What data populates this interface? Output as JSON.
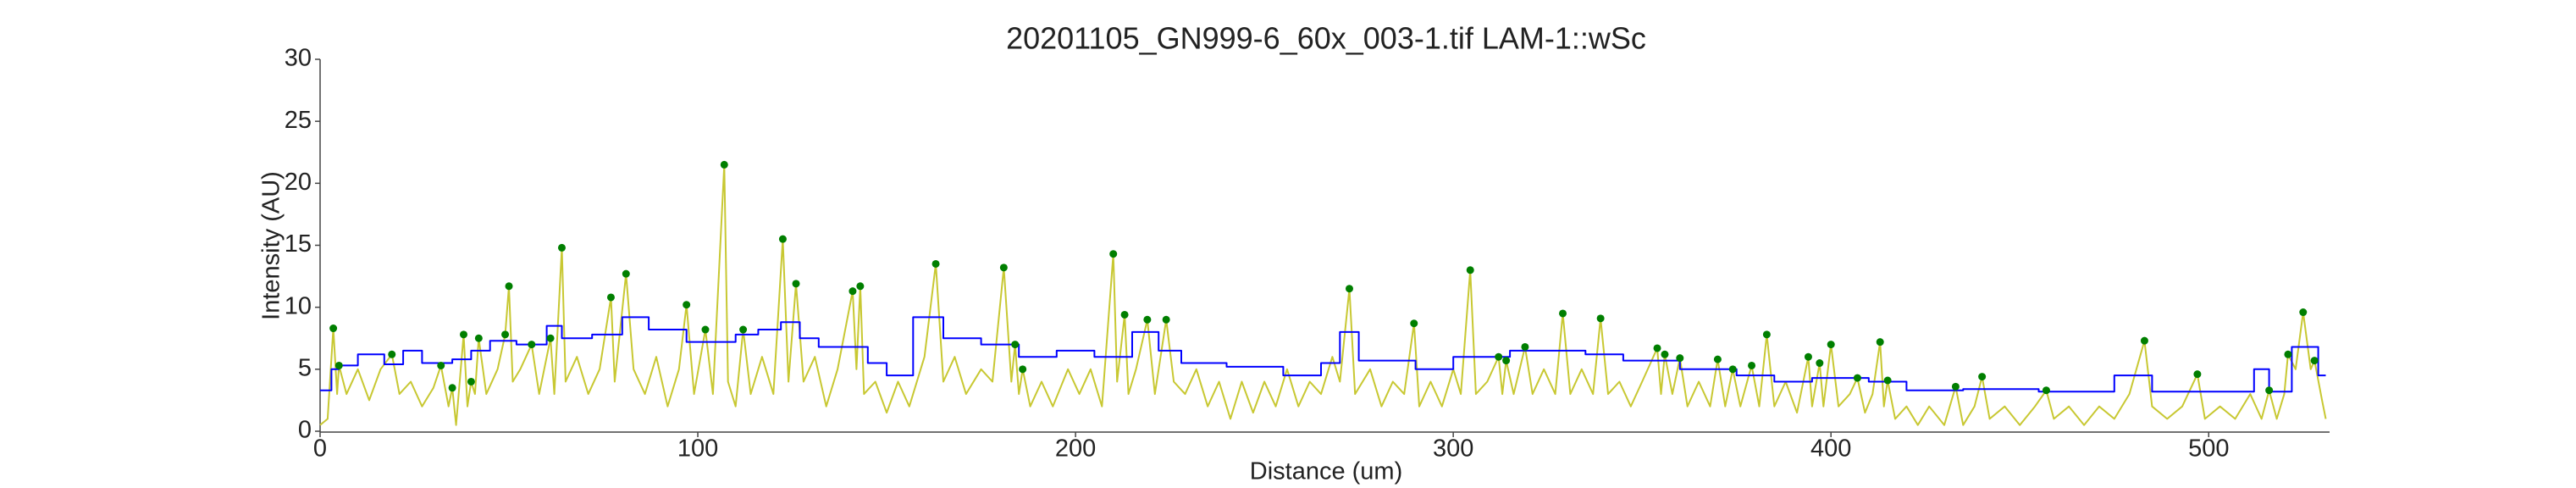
{
  "chart_data": {
    "type": "line",
    "title": "20201105_GN999-6_60x_003-1.tif LAM-1::wSc",
    "x_label": "Distance (um)",
    "y_label": "Intensity (AU)",
    "xlim": [
      0,
      532
    ],
    "ylim": [
      0,
      30
    ],
    "xticks": [
      0,
      100,
      200,
      300,
      400,
      500
    ],
    "yticks": [
      0,
      5,
      10,
      15,
      20,
      25,
      30
    ],
    "series": [
      {
        "kind": "line",
        "color": "#c8c832",
        "x": [
          0,
          2,
          3.5,
          4.5,
          5,
          7,
          10,
          13,
          16,
          19,
          21,
          24,
          27,
          30,
          32,
          34,
          35,
          36,
          38,
          39,
          40,
          41,
          42,
          44,
          47,
          49,
          50,
          51,
          53,
          56,
          58,
          61,
          62,
          64,
          65,
          68,
          71,
          74,
          77,
          78,
          81,
          83,
          86,
          89,
          92,
          95,
          97,
          99,
          102,
          104,
          107,
          108,
          110,
          112,
          114,
          117,
          120,
          122.5,
          124,
          126,
          128,
          131,
          134,
          137,
          141,
          142,
          143,
          144,
          147,
          150,
          153,
          156,
          160,
          163,
          165,
          168,
          171,
          175,
          178,
          181,
          183,
          184,
          185,
          186,
          188,
          191,
          194,
          198,
          201,
          204,
          207,
          210,
          211,
          213,
          214,
          216,
          219,
          221,
          224,
          226,
          229,
          232,
          235,
          238,
          241,
          244,
          247,
          250,
          253,
          256,
          259,
          262,
          265,
          268,
          270,
          272.5,
          274,
          278,
          281,
          284,
          287,
          289.6,
          291,
          294,
          297,
          300,
          302,
          304.5,
          306,
          309,
          312,
          313,
          314,
          316,
          319,
          321,
          324,
          327,
          329,
          331,
          334,
          337,
          339,
          341,
          344,
          347,
          350,
          354,
          355,
          356,
          358,
          360,
          362,
          365,
          368,
          370,
          372,
          374,
          376,
          379,
          381,
          383,
          385,
          388,
          391,
          394,
          395,
          397,
          398,
          400,
          402,
          405,
          407,
          409,
          411,
          413,
          414,
          415,
          417,
          420,
          423,
          426,
          430,
          433,
          435,
          438,
          440,
          442,
          446,
          450,
          454,
          457,
          459,
          463,
          467,
          471,
          475,
          479,
          483,
          485,
          489,
          493,
          497,
          499,
          503,
          507,
          511,
          514,
          516,
          518,
          520,
          521,
          523,
          525,
          527,
          528,
          530,
          531
        ],
        "values": [
          0.5,
          1,
          8.3,
          3,
          5.3,
          3,
          5,
          2.5,
          5,
          6.2,
          3,
          4,
          2,
          3.5,
          5.3,
          2,
          3.5,
          0.5,
          7.8,
          2,
          4,
          3,
          7.5,
          3,
          5,
          7.8,
          11.7,
          4,
          5,
          7,
          3,
          7.5,
          3,
          14.8,
          4,
          6,
          3,
          5,
          10.8,
          4,
          12.7,
          5,
          3,
          6,
          2,
          5,
          10.2,
          3,
          8.2,
          3,
          21.5,
          4,
          2,
          8.2,
          3,
          6,
          3,
          15.5,
          4,
          11.9,
          4,
          6,
          2,
          5,
          11.3,
          5,
          11.7,
          3,
          4,
          1.5,
          4,
          2,
          6,
          13.5,
          4,
          6,
          3,
          5,
          4,
          13.2,
          4,
          7,
          3,
          5,
          2,
          4,
          2,
          5,
          3,
          5,
          2,
          14.3,
          4,
          9.4,
          3,
          5,
          9,
          3,
          9,
          4,
          3,
          5,
          2,
          4,
          1,
          4,
          1.5,
          4,
          2,
          5,
          2,
          4,
          3,
          6,
          4,
          11.5,
          3,
          5,
          2,
          4,
          3,
          8.7,
          2,
          4,
          2,
          5,
          3,
          13,
          3,
          4,
          6,
          3,
          5.7,
          3,
          6.8,
          3,
          5,
          3,
          9.5,
          3,
          5,
          3,
          9.1,
          3,
          4,
          2,
          4,
          6.7,
          3,
          6.2,
          3,
          5.9,
          2,
          4,
          2,
          5.8,
          2,
          5,
          2,
          5.3,
          2,
          7.8,
          2,
          4,
          1.5,
          6,
          2,
          5.5,
          2,
          7,
          2,
          3,
          4.3,
          1.5,
          3,
          7.2,
          2,
          4.1,
          1,
          2,
          0.5,
          2,
          0.5,
          3.6,
          0.5,
          2,
          4.4,
          1,
          2,
          0.5,
          2,
          3.3,
          1,
          2,
          0.5,
          2,
          1,
          3,
          7.3,
          2,
          1,
          2,
          4.6,
          1,
          2,
          1,
          3,
          1,
          3.3,
          1,
          3,
          6.2,
          5,
          9.6,
          5,
          5.7,
          2.5,
          1
        ]
      },
      {
        "kind": "line",
        "color": "#0000ff",
        "x": [
          0,
          3,
          3,
          5,
          5,
          10,
          10,
          17,
          17,
          22,
          22,
          27,
          27,
          35,
          35,
          40,
          40,
          45,
          45,
          52,
          52,
          60,
          60,
          64,
          64,
          72,
          72,
          80,
          80,
          87,
          87,
          97,
          97,
          110,
          110,
          116,
          116,
          122,
          122,
          127,
          127,
          132,
          132,
          145,
          145,
          150,
          150,
          157,
          157,
          165,
          165,
          175,
          175,
          185,
          185,
          195,
          195,
          205,
          205,
          215,
          215,
          222,
          222,
          228,
          228,
          240,
          240,
          255,
          255,
          265,
          265,
          270,
          270,
          275,
          275,
          290,
          290,
          300,
          300,
          315,
          315,
          335,
          335,
          345,
          345,
          360,
          360,
          375,
          375,
          385,
          385,
          395,
          395,
          410,
          410,
          420,
          420,
          435,
          435,
          455,
          455,
          475,
          475,
          485,
          485,
          512,
          512,
          516,
          516,
          522,
          522,
          529,
          529,
          531
        ],
        "values": [
          3.3,
          3.3,
          5,
          5,
          5.3,
          5.3,
          6.2,
          6.2,
          5.4,
          5.4,
          6.5,
          6.5,
          5.5,
          5.5,
          5.8,
          5.8,
          6.5,
          6.5,
          7.3,
          7.3,
          7,
          7,
          8.5,
          8.5,
          7.5,
          7.5,
          7.8,
          7.8,
          9.2,
          9.2,
          8.2,
          8.2,
          7.2,
          7.2,
          7.8,
          7.8,
          8.2,
          8.2,
          8.8,
          8.8,
          7.5,
          7.5,
          6.8,
          6.8,
          5.5,
          5.5,
          4.5,
          4.5,
          9.2,
          9.2,
          7.5,
          7.5,
          7,
          7,
          6,
          6,
          6.5,
          6.5,
          6,
          6,
          8,
          8,
          6.5,
          6.5,
          5.5,
          5.5,
          5.2,
          5.2,
          4.5,
          4.5,
          5.5,
          5.5,
          8,
          8,
          5.7,
          5.7,
          5,
          5,
          6,
          6,
          6.5,
          6.5,
          6.2,
          6.2,
          5.7,
          5.7,
          5,
          5,
          4.5,
          4.5,
          4,
          4,
          4.3,
          4.3,
          4,
          4,
          3.3,
          3.3,
          3.4,
          3.4,
          3.2,
          3.2,
          4.5,
          4.5,
          3.2,
          3.2,
          5,
          5,
          3.2,
          3.2,
          6.8,
          6.8,
          4.5,
          4.5
        ]
      },
      {
        "kind": "scatter",
        "color": "#007f00",
        "x": [
          3.5,
          5,
          19,
          32,
          35,
          38,
          40,
          42,
          49,
          50,
          56,
          61,
          64,
          77,
          81,
          97,
          102,
          107,
          112,
          122.5,
          126,
          141,
          143,
          163,
          181,
          184,
          186,
          210,
          213,
          219,
          224,
          272.5,
          289.6,
          304.5,
          312,
          314,
          319,
          329,
          339,
          354,
          356,
          360,
          370,
          374,
          379,
          383,
          394,
          397,
          400,
          407,
          413,
          415,
          433,
          440,
          457,
          483,
          497,
          516,
          521,
          525,
          528
        ],
        "values": [
          8.3,
          5.3,
          6.2,
          5.3,
          3.5,
          7.8,
          4,
          7.5,
          7.8,
          11.7,
          7,
          7.5,
          14.8,
          10.8,
          12.7,
          10.2,
          8.2,
          21.5,
          8.2,
          15.5,
          11.9,
          11.3,
          11.7,
          13.5,
          13.2,
          7,
          5,
          14.3,
          9.4,
          9,
          9,
          11.5,
          8.7,
          13,
          6,
          5.7,
          6.8,
          9.5,
          9.1,
          6.7,
          6.2,
          5.9,
          5.8,
          5,
          5.3,
          7.8,
          6,
          5.5,
          7,
          4.3,
          7.2,
          4.1,
          3.6,
          4.4,
          3.3,
          7.3,
          4.6,
          3.3,
          6.2,
          9.6,
          5.7
        ]
      }
    ]
  }
}
